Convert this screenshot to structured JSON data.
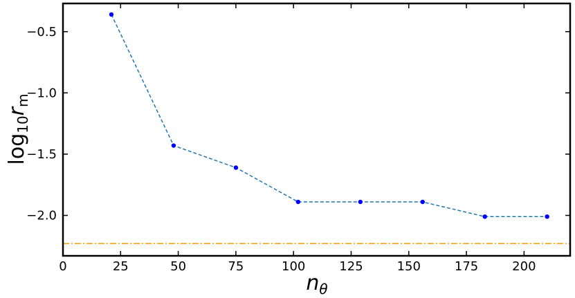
{
  "chart_data": {
    "type": "line",
    "x": [
      21,
      48,
      75,
      102,
      129,
      156,
      183,
      210
    ],
    "y": [
      -0.36,
      -1.43,
      -1.61,
      -1.89,
      -1.89,
      -1.89,
      -2.01,
      -2.01
    ],
    "series_style": {
      "line_color": "#1f77b4",
      "line_style": "dashed",
      "marker_color": "#0000ff"
    },
    "reference_line": {
      "y": -2.23,
      "color": "#ff9900",
      "line_style": "dash-dot"
    },
    "xlabel": {
      "base": "n",
      "subscript": "θ"
    },
    "ylabel": {
      "base": "log",
      "subscript": "10",
      "var": "r",
      "var_subscript": "m"
    },
    "xlim": [
      0,
      220
    ],
    "ylim": [
      -2.33,
      -0.27
    ],
    "xticks": [
      0,
      25,
      50,
      75,
      100,
      125,
      150,
      175,
      200
    ],
    "yticks": [
      -2.0,
      -1.5,
      -1.0,
      -0.5
    ],
    "ytick_labels": [
      "−2.0",
      "−1.5",
      "−1.0",
      "−0.5"
    ],
    "grid": false
  }
}
